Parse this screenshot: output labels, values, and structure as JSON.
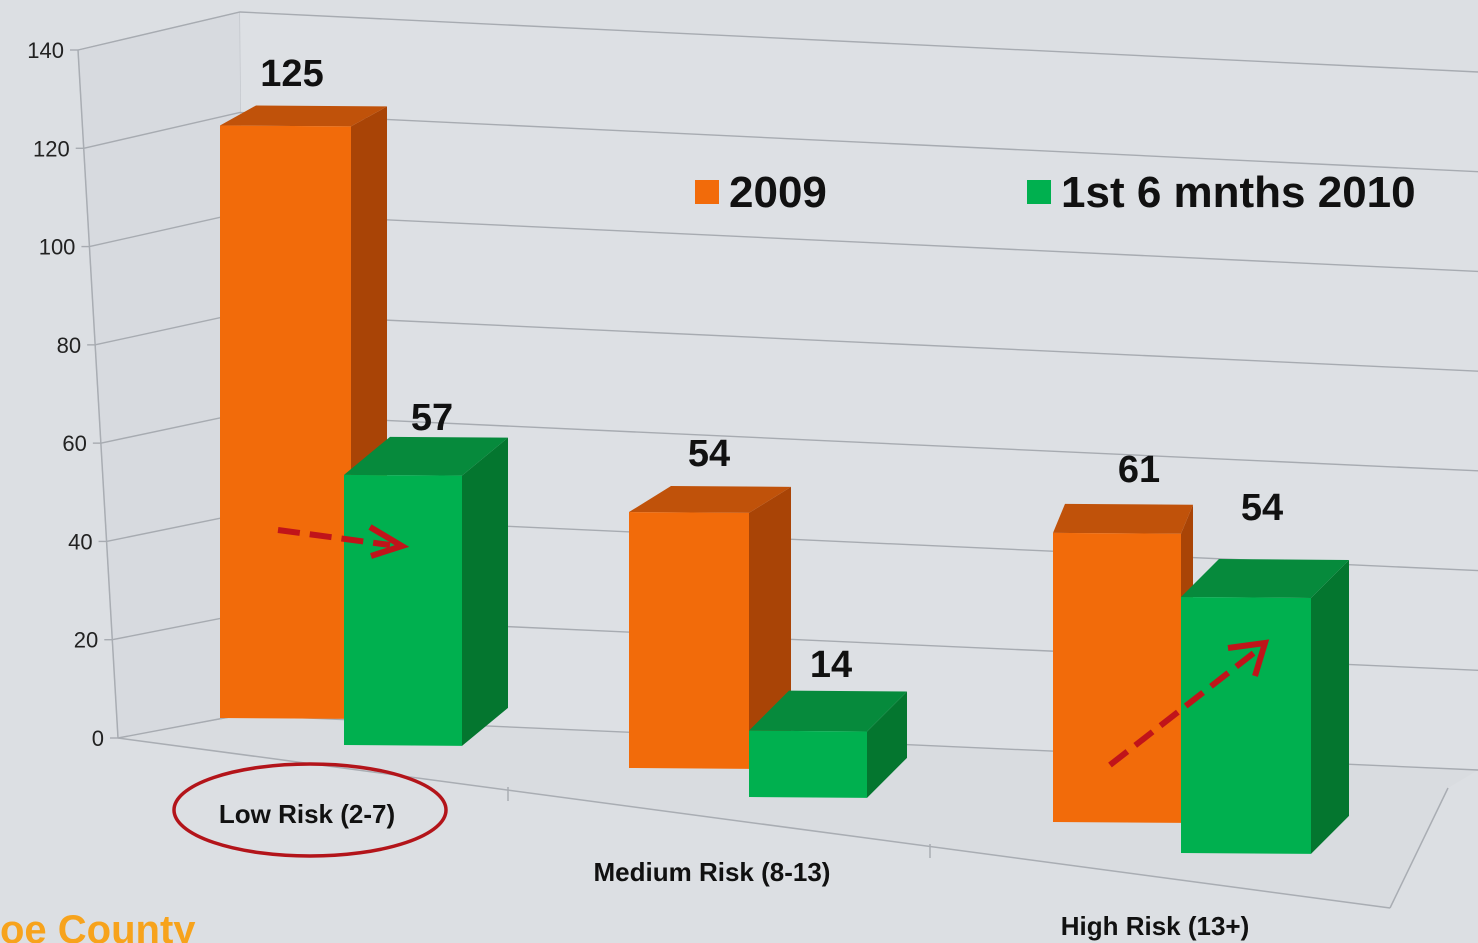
{
  "chart_data": {
    "type": "bar",
    "style": "3d-clustered",
    "categories": [
      "Low Risk (2-7)",
      "Medium Risk (8-13)",
      "High Risk (13+)"
    ],
    "series": [
      {
        "name": "2009",
        "values": [
          125,
          54,
          61
        ],
        "color": "#f26b0a",
        "side_color": "#a94406",
        "top_color": "#c0520a"
      },
      {
        "name": "1st 6 mnths 2010",
        "values": [
          57,
          14,
          54
        ],
        "color": "#00b04f",
        "side_color": "#04762f",
        "top_color": "#068a3c"
      }
    ],
    "y_ticks": [
      0,
      20,
      40,
      60,
      80,
      100,
      120,
      140
    ],
    "ylim": [
      0,
      140
    ],
    "legend_position": "top-right",
    "grid": true,
    "annotations": [
      {
        "type": "ellipse",
        "target_category": "Low Risk (2-7)",
        "color": "#b3141a"
      },
      {
        "type": "dashed-arrow",
        "direction": "right",
        "category": "Low Risk (2-7)",
        "color": "#c0141a"
      },
      {
        "type": "dashed-arrow",
        "direction": "up-right",
        "category": "High Risk (13+)",
        "color": "#c0141a"
      }
    ]
  },
  "footer": {
    "text": "oe County"
  }
}
